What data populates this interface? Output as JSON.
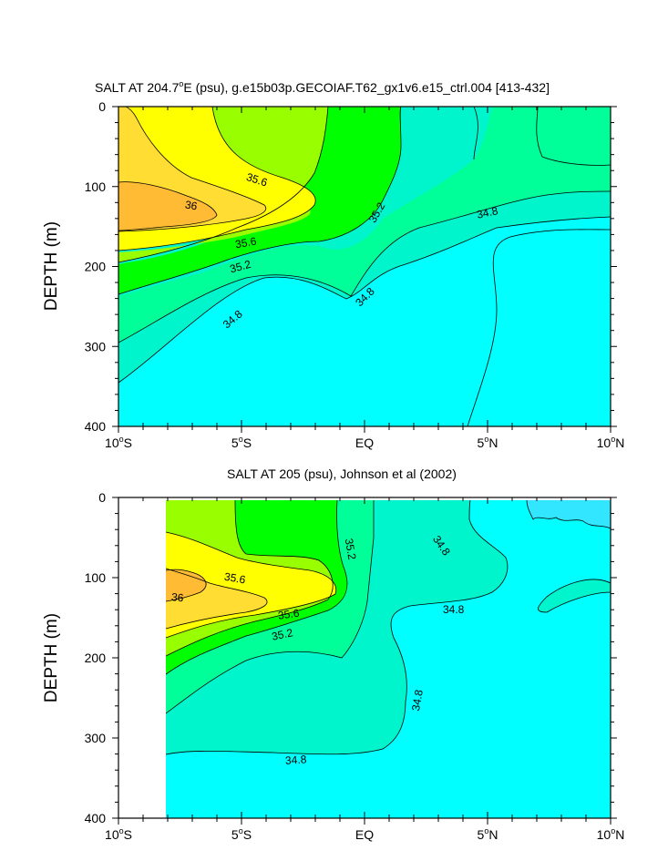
{
  "colors": {
    "s_lt_34_8": "#00ffff",
    "s_34_8_35_0": "#00f5cc",
    "s_35_0_35_2": "#00ff99",
    "s_35_2_35_4": "#00ff00",
    "s_35_4_35_6": "#99ff00",
    "s_35_6_35_8": "#ffff00",
    "s_35_8_36_0": "#ffdd33",
    "s_gt_36": "#ffbb33",
    "obs_low": "#33e6ff"
  },
  "chart_data": [
    {
      "type": "contour",
      "title": "SALT AT 204.7°E (psu), g.e15b03p.GECOIAF.T62_gx1v6.e15_ctrl.004 [413-432]",
      "title_parts": [
        "SALT AT 204.7",
        "o",
        "E (psu), g.e15b03p.GECOIAF.T62_gx1v6.e15_ctrl.004 [413-432]"
      ],
      "xlabel": "",
      "ylabel": "DEPTH (m)",
      "xlim": [
        -10,
        10
      ],
      "ylim": [
        400,
        0
      ],
      "x_ticks": [
        {
          "num": "10",
          "deg": "o",
          "hemi": "S"
        },
        {
          "num": "5",
          "deg": "o",
          "hemi": "S"
        },
        {
          "num": "EQ",
          "deg": "",
          "hemi": ""
        },
        {
          "num": "5",
          "deg": "o",
          "hemi": "N"
        },
        {
          "num": "10",
          "deg": "o",
          "hemi": "N"
        }
      ],
      "y_ticks": [
        "0",
        "100",
        "200",
        "300",
        "400"
      ],
      "contour_labels": [
        "35.6",
        "36",
        "35.6",
        "35.2",
        "35.2",
        "34.8",
        "34.8",
        "34.8"
      ]
    },
    {
      "type": "contour",
      "title": "SALT AT 205 (psu), Johnson et al (2002)",
      "title_parts": [
        "SALT AT 205 (psu), Johnson et al (2002)",
        "",
        ""
      ],
      "xlabel": "",
      "ylabel": "DEPTH (m)",
      "xlim": [
        -10,
        10
      ],
      "ylim": [
        400,
        0
      ],
      "x_ticks": [
        {
          "num": "10",
          "deg": "o",
          "hemi": "S"
        },
        {
          "num": "5",
          "deg": "o",
          "hemi": "S"
        },
        {
          "num": "EQ",
          "deg": "",
          "hemi": ""
        },
        {
          "num": "5",
          "deg": "o",
          "hemi": "N"
        },
        {
          "num": "10",
          "deg": "o",
          "hemi": "N"
        }
      ],
      "y_ticks": [
        "0",
        "100",
        "200",
        "300",
        "400"
      ],
      "contour_labels": [
        "35.6",
        "36",
        "35.6",
        "35.2",
        "35.2",
        "34.8",
        "34.8",
        "34.8",
        "34.8"
      ]
    }
  ]
}
